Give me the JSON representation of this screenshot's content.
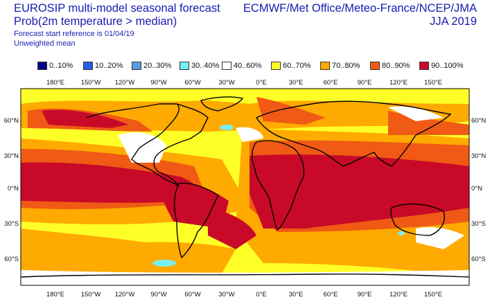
{
  "header": {
    "title_line1": "EUROSIP multi-model seasonal forecast",
    "title_line2": "Prob(2m temperature > median)",
    "forecast_start": "Forecast start reference is 01/04/19",
    "weighting": "Unweighted mean",
    "centres": "ECMWF/Met Office/Meteo-France/NCEP/JMA",
    "season": "JJA 2019"
  },
  "legend": [
    {
      "label": "0..10%",
      "color": "#00008c"
    },
    {
      "label": "10..20%",
      "color": "#2a5ae6"
    },
    {
      "label": "20..30%",
      "color": "#5a9be6"
    },
    {
      "label": "30..40%",
      "color": "#78f0f0"
    },
    {
      "label": "40..60%",
      "color": "#ffffff"
    },
    {
      "label": "60..70%",
      "color": "#ffff28"
    },
    {
      "label": "70..80%",
      "color": "#ffaa00"
    },
    {
      "label": "80..90%",
      "color": "#f05a14"
    },
    {
      "label": "90..100%",
      "color": "#c80a28"
    }
  ],
  "map": {
    "projection": "equirectangular, centred on 0°E",
    "lon_ticks": [
      "180°E",
      "150°W",
      "120°W",
      "90°W",
      "60°W",
      "30°W",
      "0°E",
      "30°E",
      "60°E",
      "90°E",
      "120°E",
      "150°E"
    ],
    "lat_ticks": [
      "60°N",
      "30°N",
      "0°N",
      "30°S",
      "60°S"
    ]
  }
}
